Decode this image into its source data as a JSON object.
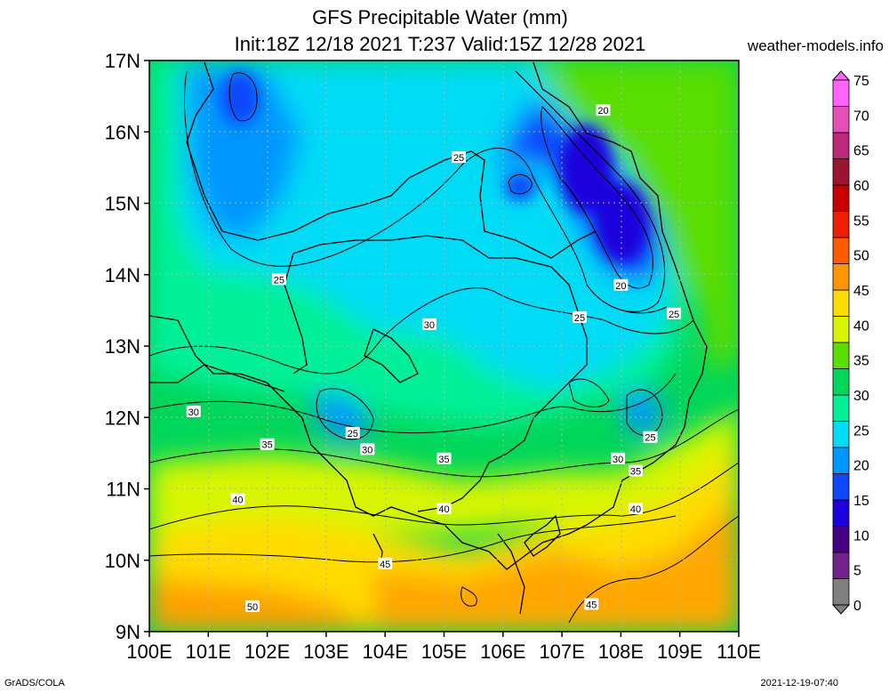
{
  "title": {
    "line1": "GFS Precipitable Water (mm)",
    "line2": "Init:18Z 12/18 2021 T:237 Valid:15Z 12/28 2021"
  },
  "site": "weather-models.info",
  "footer": {
    "left": "GrADS/COLA",
    "right": "2021-12-19-07:40"
  },
  "map": {
    "lat_labels": [
      "17N",
      "16N",
      "15N",
      "14N",
      "13N",
      "12N",
      "11N",
      "10N",
      "9N"
    ],
    "lon_labels": [
      "100E",
      "101E",
      "102E",
      "103E",
      "104E",
      "105E",
      "106E",
      "107E",
      "108E",
      "109E",
      "110E"
    ],
    "lat_range": [
      9,
      17
    ],
    "lon_range": [
      100,
      110
    ],
    "contour_labels": [
      {
        "text": "20",
        "lon": 107.7,
        "lat": 16.3
      },
      {
        "text": "25",
        "lon": 105.25,
        "lat": 15.64
      },
      {
        "text": "25",
        "lon": 102.2,
        "lat": 13.93
      },
      {
        "text": "20",
        "lon": 108.0,
        "lat": 13.85
      },
      {
        "text": "25",
        "lon": 107.3,
        "lat": 13.4
      },
      {
        "text": "25",
        "lon": 108.9,
        "lat": 13.45
      },
      {
        "text": "30",
        "lon": 104.75,
        "lat": 13.3
      },
      {
        "text": "30",
        "lon": 100.75,
        "lat": 12.08
      },
      {
        "text": "25",
        "lon": 103.45,
        "lat": 11.78
      },
      {
        "text": "30",
        "lon": 103.7,
        "lat": 11.55
      },
      {
        "text": "25",
        "lon": 108.5,
        "lat": 11.72
      },
      {
        "text": "35",
        "lon": 102.0,
        "lat": 11.62
      },
      {
        "text": "35",
        "lon": 105.0,
        "lat": 11.42
      },
      {
        "text": "30",
        "lon": 107.95,
        "lat": 11.42
      },
      {
        "text": "35",
        "lon": 108.25,
        "lat": 11.25
      },
      {
        "text": "40",
        "lon": 101.5,
        "lat": 10.85
      },
      {
        "text": "40",
        "lon": 105.0,
        "lat": 10.72
      },
      {
        "text": "40",
        "lon": 108.25,
        "lat": 10.72
      },
      {
        "text": "45",
        "lon": 104.0,
        "lat": 9.95
      },
      {
        "text": "45",
        "lon": 107.5,
        "lat": 9.38
      },
      {
        "text": "50",
        "lon": 101.75,
        "lat": 9.35
      }
    ]
  },
  "colorbar": {
    "ticks": [
      "75",
      "70",
      "65",
      "60",
      "55",
      "50",
      "45",
      "40",
      "35",
      "30",
      "25",
      "20",
      "15",
      "10",
      "5",
      "0"
    ],
    "colors": [
      "#808080",
      "#73248c",
      "#460082",
      "#1e00dc",
      "#0f46ff",
      "#0096ff",
      "#00dcf5",
      "#00f099",
      "#00d65a",
      "#5add00",
      "#d7f500",
      "#ffdc00",
      "#ff9600",
      "#ff5a00",
      "#f01e00",
      "#c80000",
      "#9b1432",
      "#be2878",
      "#e650b4",
      "#ff64ff"
    ]
  }
}
